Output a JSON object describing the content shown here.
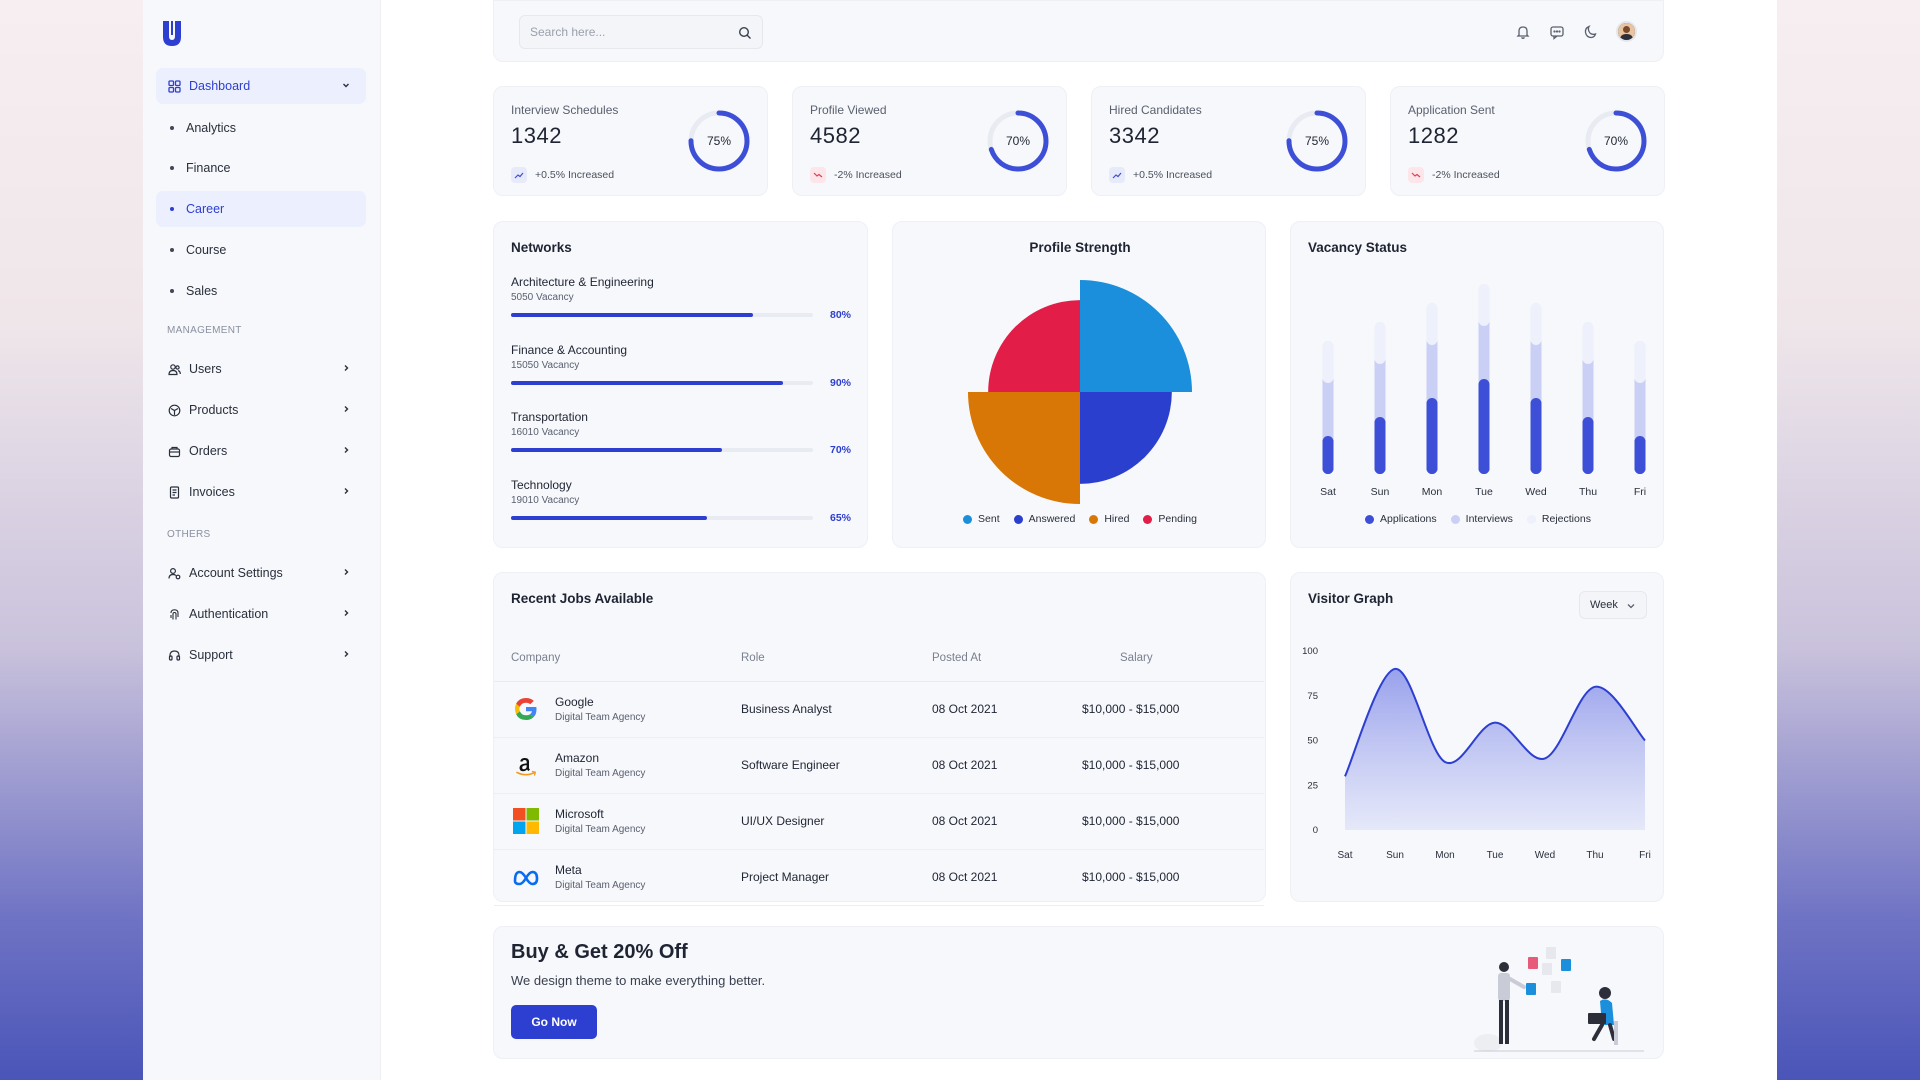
{
  "search": {
    "placeholder": "Search here..."
  },
  "sidebar": {
    "dashboard_label": "Dashboard",
    "sub_items": [
      {
        "label": "Analytics"
      },
      {
        "label": "Finance"
      },
      {
        "label": "Career"
      },
      {
        "label": "Course"
      },
      {
        "label": "Sales"
      }
    ],
    "management_label": "MANAGEMENT",
    "management_items": [
      {
        "label": "Users",
        "icon": "users-icon"
      },
      {
        "label": "Products",
        "icon": "box-icon"
      },
      {
        "label": "Orders",
        "icon": "basket-icon"
      },
      {
        "label": "Invoices",
        "icon": "invoice-icon"
      }
    ],
    "others_label": "OTHERS",
    "others_items": [
      {
        "label": "Account Settings",
        "icon": "user-settings-icon"
      },
      {
        "label": "Authentication",
        "icon": "fingerprint-icon"
      },
      {
        "label": "Support",
        "icon": "headset-icon"
      }
    ]
  },
  "stats": [
    {
      "label": "Interview Schedules",
      "value": "1342",
      "trend": "+0.5% Increased",
      "trend_dir": "up",
      "pct": "75%",
      "fraction": 0.75
    },
    {
      "label": "Profile Viewed",
      "value": "4582",
      "trend": "-2% Increased",
      "trend_dir": "down",
      "pct": "70%",
      "fraction": 0.7
    },
    {
      "label": "Hired Candidates",
      "value": "3342",
      "trend": "+0.5% Increased",
      "trend_dir": "up",
      "pct": "75%",
      "fraction": 0.75
    },
    {
      "label": "Application Sent",
      "value": "1282",
      "trend": "-2% Increased",
      "trend_dir": "down",
      "pct": "70%",
      "fraction": 0.7
    }
  ],
  "networks": {
    "title": "Networks",
    "items": [
      {
        "name": "Architecture & Engineering",
        "sub": "5050 Vacancy",
        "pct": "80%",
        "fraction": 0.8
      },
      {
        "name": "Finance & Accounting",
        "sub": "15050 Vacancy",
        "pct": "90%",
        "fraction": 0.9
      },
      {
        "name": "Transportation",
        "sub": "16010 Vacancy",
        "pct": "70%",
        "fraction": 0.7
      },
      {
        "name": "Technology",
        "sub": "19010 Vacancy",
        "pct": "65%",
        "fraction": 0.65
      }
    ]
  },
  "profile_strength": {
    "title": "Profile Strength",
    "legend": [
      {
        "label": "Sent",
        "color": "#1b8fdc"
      },
      {
        "label": "Answered",
        "color": "#2b3fcf"
      },
      {
        "label": "Hired",
        "color": "#d97706"
      },
      {
        "label": "Pending",
        "color": "#e11d48"
      }
    ]
  },
  "vacancy_status": {
    "title": "Vacancy Status",
    "legend": [
      {
        "label": "Applications",
        "color": "#3d4fd6"
      },
      {
        "label": "Interviews",
        "color": "#c9cff5"
      },
      {
        "label": "Rejections",
        "color": "#eef0fb"
      }
    ]
  },
  "recent_jobs": {
    "title": "Recent Jobs Available",
    "headers": {
      "company": "Company",
      "role": "Role",
      "posted": "Posted At",
      "salary": "Salary"
    },
    "rows": [
      {
        "company": "Google",
        "agency": "Digital Team Agency",
        "role": "Business Analyst",
        "posted": "08 Oct 2021",
        "salary": "$10,000 - $15,000",
        "logo": "google-logo"
      },
      {
        "company": "Amazon",
        "agency": "Digital Team Agency",
        "role": "Software Engineer",
        "posted": "08 Oct 2021",
        "salary": "$10,000 - $15,000",
        "logo": "amazon-logo"
      },
      {
        "company": "Microsoft",
        "agency": "Digital Team Agency",
        "role": "UI/UX Designer",
        "posted": "08 Oct 2021",
        "salary": "$10,000 - $15,000",
        "logo": "microsoft-logo"
      },
      {
        "company": "Meta",
        "agency": "Digital Team Agency",
        "role": "Project Manager",
        "posted": "08 Oct 2021",
        "salary": "$10,000 - $15,000",
        "logo": "meta-logo"
      }
    ]
  },
  "visitor_graph": {
    "title": "Visitor Graph",
    "range_label": "Week"
  },
  "promo": {
    "title": "Buy & Get 20% Off",
    "subtitle": "We design theme to make everything better.",
    "button": "Go Now"
  },
  "colors": {
    "accent": "#2d3fd0",
    "up": "#3d4fd6",
    "down": "#e23b5a"
  },
  "chart_data": [
    {
      "type": "pie",
      "title": "Profile Strength",
      "categories": [
        "Sent",
        "Answered",
        "Hired",
        "Pending"
      ],
      "values": [
        25,
        25,
        25,
        25
      ],
      "relative_radius": [
        1.0,
        0.82,
        1.0,
        0.82
      ],
      "colors": [
        "#1b8fdc",
        "#2b3fcf",
        "#d97706",
        "#e11d48"
      ],
      "legend_position": "bottom"
    },
    {
      "type": "bar",
      "title": "Vacancy Status",
      "categories": [
        "Sat",
        "Sun",
        "Mon",
        "Tue",
        "Wed",
        "Thu",
        "Fri"
      ],
      "series": [
        {
          "name": "Applications",
          "values": [
            20,
            30,
            40,
            50,
            40,
            30,
            20
          ]
        },
        {
          "name": "Interviews",
          "values": [
            30,
            30,
            30,
            30,
            30,
            30,
            30
          ]
        },
        {
          "name": "Rejections",
          "values": [
            20,
            20,
            20,
            20,
            20,
            20,
            20
          ]
        }
      ],
      "stacked": true,
      "legend_position": "bottom",
      "grid": false
    },
    {
      "type": "area",
      "title": "Visitor Graph",
      "x": [
        "Sat",
        "Sun",
        "Mon",
        "Tue",
        "Wed",
        "Thu",
        "Fri"
      ],
      "series": [
        {
          "values": [
            30,
            90,
            38,
            60,
            40,
            80,
            50
          ]
        }
      ],
      "yticks": [
        0,
        25,
        50,
        75,
        100
      ],
      "ylim": [
        0,
        100
      ],
      "grid": false
    }
  ]
}
